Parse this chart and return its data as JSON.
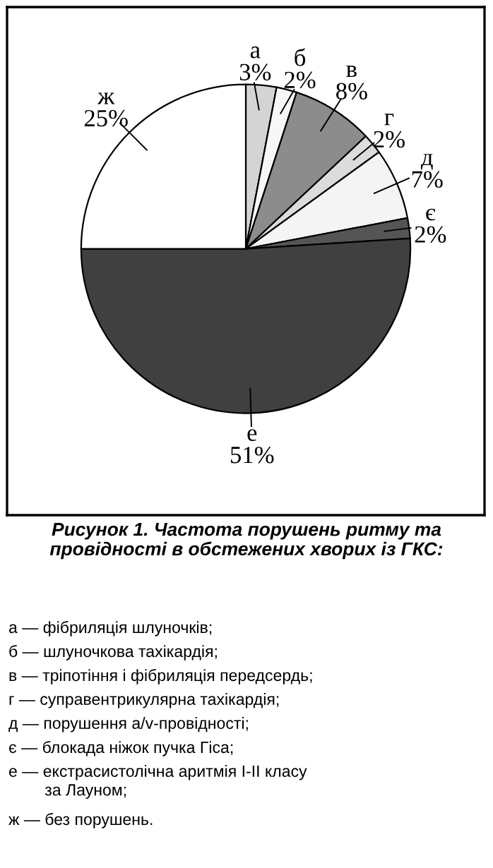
{
  "chart_data": {
    "type": "pie",
    "title": "Рисунок 1. Частота порушень ритму та провідності в обстежених хворих із ГКС:",
    "categories": [
      "а",
      "б",
      "в",
      "г",
      "д",
      "є",
      "е",
      "ж"
    ],
    "values": [
      3,
      2,
      8,
      2,
      7,
      2,
      51,
      25
    ],
    "value_labels": [
      "3%",
      "2%",
      "8%",
      "2%",
      "7%",
      "2%",
      "51%",
      "25%"
    ],
    "colors": [
      "#d4d4d4",
      "#f7f7f7",
      "#8c8c8c",
      "#dcdcdc",
      "#f4f4f4",
      "#555555",
      "#404040",
      "#ffffff"
    ],
    "annotations": [
      "а — фібриляція шлуночків;",
      "б — шлуночкова тахікардія;",
      "в — тріпотіння і фібриляція передсердь;",
      "г — суправентрикулярна тахікардія;",
      "д — порушення а/v-провідності;",
      "є — блокада ніжок пучка Гіса;",
      "е — екстрасистолічна аритмія I-II класу\n        за Лауном;",
      "ж — без порушень."
    ]
  }
}
